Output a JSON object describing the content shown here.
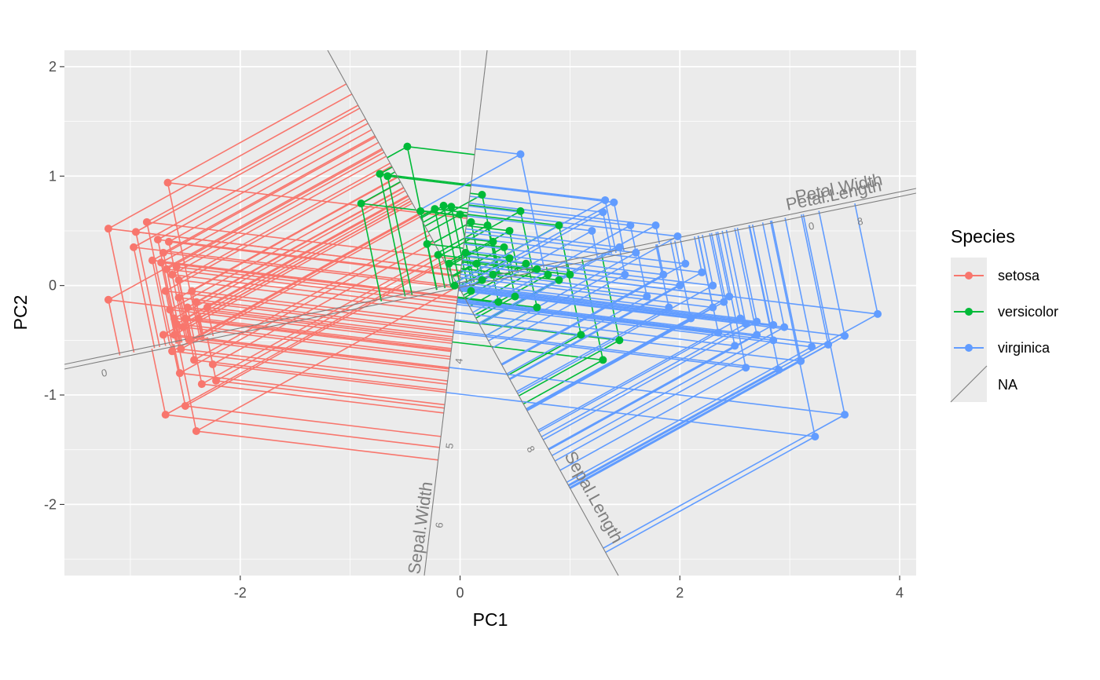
{
  "chart_data": {
    "type": "scatter",
    "title": "",
    "xlabel": "PC1",
    "ylabel": "PC2",
    "xlim": [
      -3.6,
      4.15
    ],
    "ylim": [
      -2.65,
      2.15
    ],
    "x_ticks": [
      -2,
      0,
      2,
      4
    ],
    "y_ticks": [
      -2,
      -1,
      0,
      1,
      2
    ],
    "x_tick_labels": [
      "-2",
      "0",
      "2",
      "4"
    ],
    "y_tick_labels": [
      "-2",
      "-1",
      "0",
      "1",
      "2"
    ],
    "grid": true,
    "legend": {
      "title": "Species",
      "placement": "right",
      "entries": [
        {
          "label": "setosa",
          "color": "#F8766D"
        },
        {
          "label": "versicolor",
          "color": "#00BA38"
        },
        {
          "label": "virginica",
          "color": "#619CFF"
        },
        {
          "label": "NA",
          "color": "#7f7f7f"
        }
      ]
    },
    "series": [
      {
        "name": "setosa",
        "color": "#F8766D",
        "points": [
          [
            -3.2,
            0.52
          ],
          [
            -3.2,
            -0.13
          ],
          [
            -2.95,
            0.49
          ],
          [
            -2.97,
            0.35
          ],
          [
            -2.85,
            0.58
          ],
          [
            -2.8,
            0.23
          ],
          [
            -2.75,
            0.42
          ],
          [
            -2.72,
            0.21
          ],
          [
            -2.7,
            0.3
          ],
          [
            -2.68,
            -0.05
          ],
          [
            -2.67,
            0.15
          ],
          [
            -2.65,
            0.4
          ],
          [
            -2.64,
            -0.22
          ],
          [
            -2.62,
            0.1
          ],
          [
            -2.6,
            -0.3
          ],
          [
            -2.6,
            -0.45
          ],
          [
            -2.58,
            0.17
          ],
          [
            -2.56,
            -0.11
          ],
          [
            -2.55,
            -0.8
          ],
          [
            -2.54,
            -0.58
          ],
          [
            -2.52,
            -0.38
          ],
          [
            -2.5,
            -0.3
          ],
          [
            -2.5,
            -1.1
          ],
          [
            -2.48,
            -0.2
          ],
          [
            -2.46,
            -0.5
          ],
          [
            -2.44,
            -0.05
          ],
          [
            -2.42,
            -0.68
          ],
          [
            -2.4,
            -0.15
          ],
          [
            -2.38,
            -0.3
          ],
          [
            -2.35,
            -0.9
          ],
          [
            -2.3,
            -0.2
          ],
          [
            -2.25,
            -0.72
          ],
          [
            -2.22,
            -0.87
          ],
          [
            -2.66,
            0.94
          ],
          [
            -2.68,
            -1.18
          ],
          [
            -2.4,
            -1.33
          ],
          [
            -2.58,
            -0.35
          ],
          [
            -2.62,
            -0.6
          ],
          [
            -2.7,
            -0.45
          ],
          [
            -2.56,
            0.05
          ]
        ]
      },
      {
        "name": "versicolor",
        "color": "#00BA38",
        "points": [
          [
            -0.48,
            1.27
          ],
          [
            -0.73,
            1.02
          ],
          [
            -0.66,
            1.0
          ],
          [
            -0.9,
            0.75
          ],
          [
            -0.36,
            0.68
          ],
          [
            -0.23,
            0.7
          ],
          [
            -0.15,
            0.73
          ],
          [
            -0.08,
            0.72
          ],
          [
            0.2,
            0.83
          ],
          [
            0.0,
            0.65
          ],
          [
            0.1,
            0.58
          ],
          [
            0.25,
            0.55
          ],
          [
            0.3,
            0.4
          ],
          [
            0.4,
            0.35
          ],
          [
            -0.3,
            0.38
          ],
          [
            -0.2,
            0.28
          ],
          [
            0.05,
            0.3
          ],
          [
            0.15,
            0.2
          ],
          [
            0.45,
            0.25
          ],
          [
            0.6,
            0.2
          ],
          [
            0.7,
            0.15
          ],
          [
            0.8,
            0.1
          ],
          [
            0.9,
            0.05
          ],
          [
            1.0,
            0.1
          ],
          [
            0.3,
            0.1
          ],
          [
            0.2,
            0.05
          ],
          [
            0.45,
            0.5
          ],
          [
            0.55,
            0.68
          ],
          [
            0.9,
            0.55
          ],
          [
            1.1,
            -0.45
          ],
          [
            1.3,
            -0.68
          ],
          [
            1.45,
            -0.5
          ],
          [
            0.5,
            -0.1
          ],
          [
            0.7,
            -0.2
          ],
          [
            0.1,
            -0.05
          ],
          [
            -0.1,
            0.2
          ],
          [
            -0.05,
            0.0
          ],
          [
            0.35,
            -0.15
          ]
        ]
      },
      {
        "name": "virginica",
        "color": "#619CFF",
        "points": [
          [
            0.55,
            1.2
          ],
          [
            1.32,
            0.78
          ],
          [
            1.4,
            0.76
          ],
          [
            1.3,
            0.67
          ],
          [
            1.55,
            0.55
          ],
          [
            1.78,
            0.55
          ],
          [
            1.98,
            0.45
          ],
          [
            2.05,
            0.2
          ],
          [
            2.2,
            0.12
          ],
          [
            2.3,
            0.0
          ],
          [
            2.4,
            -0.15
          ],
          [
            2.55,
            -0.3
          ],
          [
            2.6,
            -0.35
          ],
          [
            2.7,
            -0.33
          ],
          [
            2.85,
            -0.36
          ],
          [
            2.95,
            -0.38
          ],
          [
            3.35,
            -0.54
          ],
          [
            3.5,
            -0.46
          ],
          [
            3.8,
            -0.26
          ],
          [
            3.2,
            -0.56
          ],
          [
            3.1,
            -0.69
          ],
          [
            2.9,
            -0.77
          ],
          [
            2.85,
            -0.5
          ],
          [
            2.7,
            -0.45
          ],
          [
            2.5,
            -0.55
          ],
          [
            2.35,
            -0.43
          ],
          [
            2.3,
            -0.2
          ],
          [
            2.1,
            -0.3
          ],
          [
            1.9,
            -0.2
          ],
          [
            1.7,
            -0.1
          ],
          [
            1.6,
            0.3
          ],
          [
            1.45,
            0.35
          ],
          [
            1.2,
            0.5
          ],
          [
            3.5,
            -1.18
          ],
          [
            3.23,
            -1.38
          ],
          [
            2.6,
            -0.75
          ],
          [
            2.45,
            -0.1
          ],
          [
            2.0,
            0.0
          ],
          [
            1.85,
            0.1
          ],
          [
            1.5,
            0.1
          ]
        ]
      }
    ],
    "loadings": [
      {
        "name": "Sepal.Width",
        "ticks": [
          "4",
          "5",
          "6"
        ]
      },
      {
        "name": "Sepal.Length",
        "ticks": [
          "8"
        ]
      },
      {
        "name": "Petal.Width",
        "ticks": []
      },
      {
        "name": "Petal.Length",
        "ticks": [
          "0",
          "8"
        ]
      },
      {
        "name": "",
        "ticks": [
          "0"
        ]
      }
    ]
  }
}
